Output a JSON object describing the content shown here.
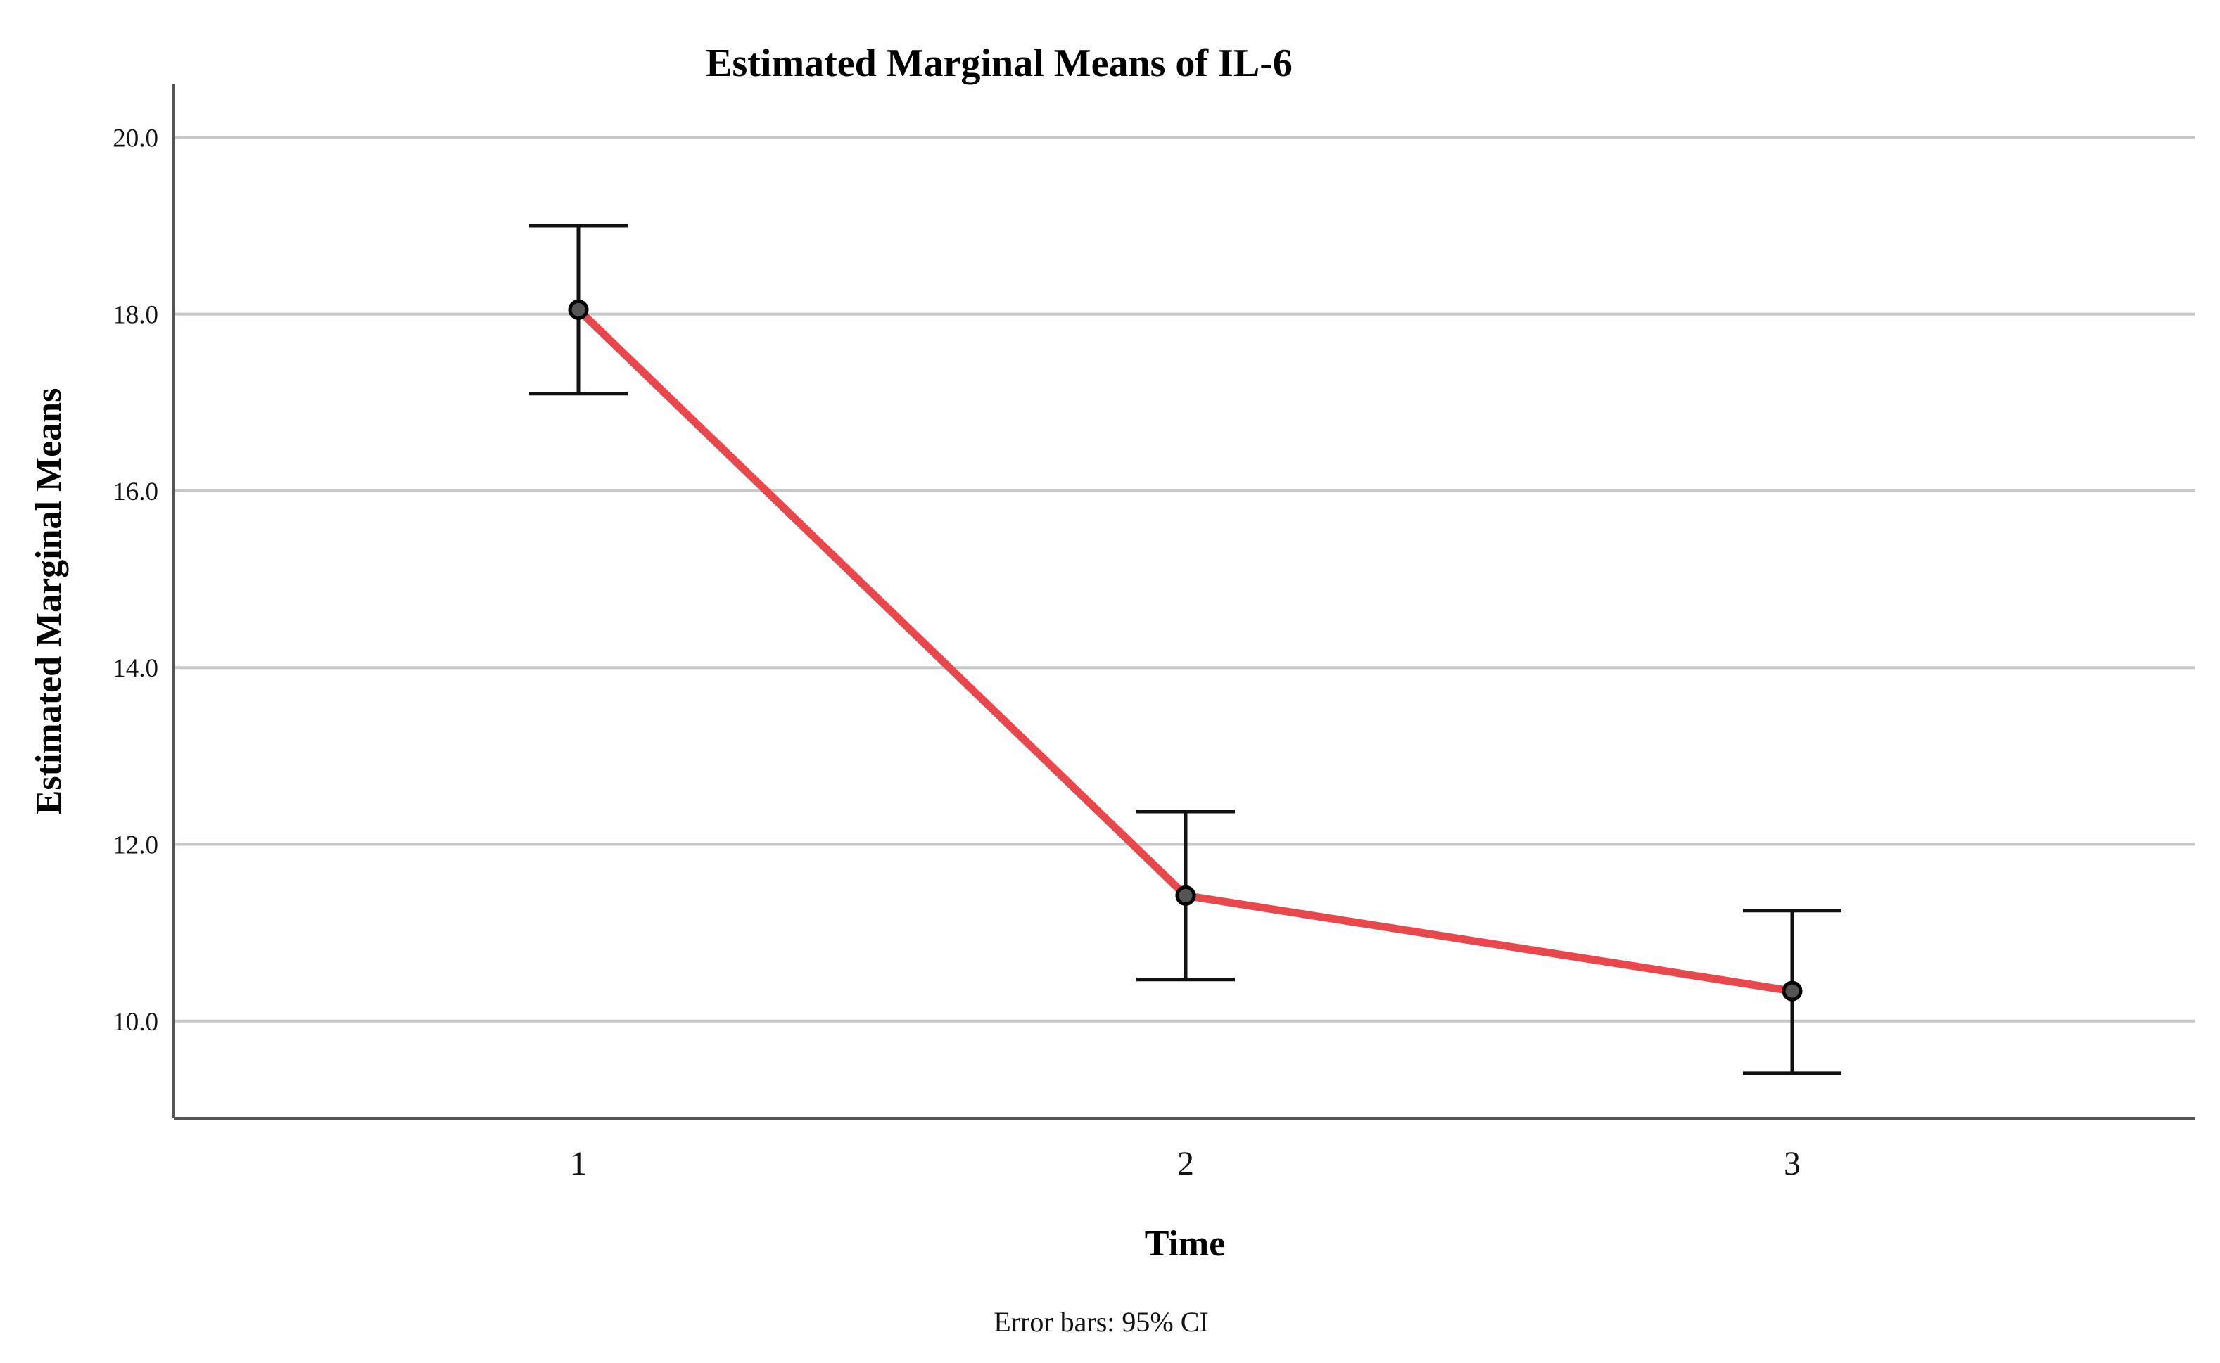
{
  "chart_data": {
    "type": "line",
    "title": "Estimated Marginal Means of IL-6",
    "xlabel": "Time",
    "ylabel": "Estimated Marginal Means",
    "footnote": "Error bars: 95% CI",
    "categories": [
      "1",
      "2",
      "3"
    ],
    "series": [
      {
        "name": "IL-6",
        "values": [
          18.05,
          11.42,
          10.34
        ],
        "ci_lower": [
          17.1,
          10.47,
          9.41
        ],
        "ci_upper": [
          19.0,
          12.37,
          11.25
        ]
      }
    ],
    "yticks": [
      10.0,
      12.0,
      14.0,
      16.0,
      18.0,
      20.0
    ],
    "ylim": [
      8.9,
      20.6
    ],
    "grid": true,
    "colors": {
      "line": "#e8474b",
      "marker_fill": "#555555",
      "marker_stroke": "#000000",
      "errorbar": "#111111",
      "grid": "#c8c8c8",
      "axis": "#555555"
    }
  }
}
